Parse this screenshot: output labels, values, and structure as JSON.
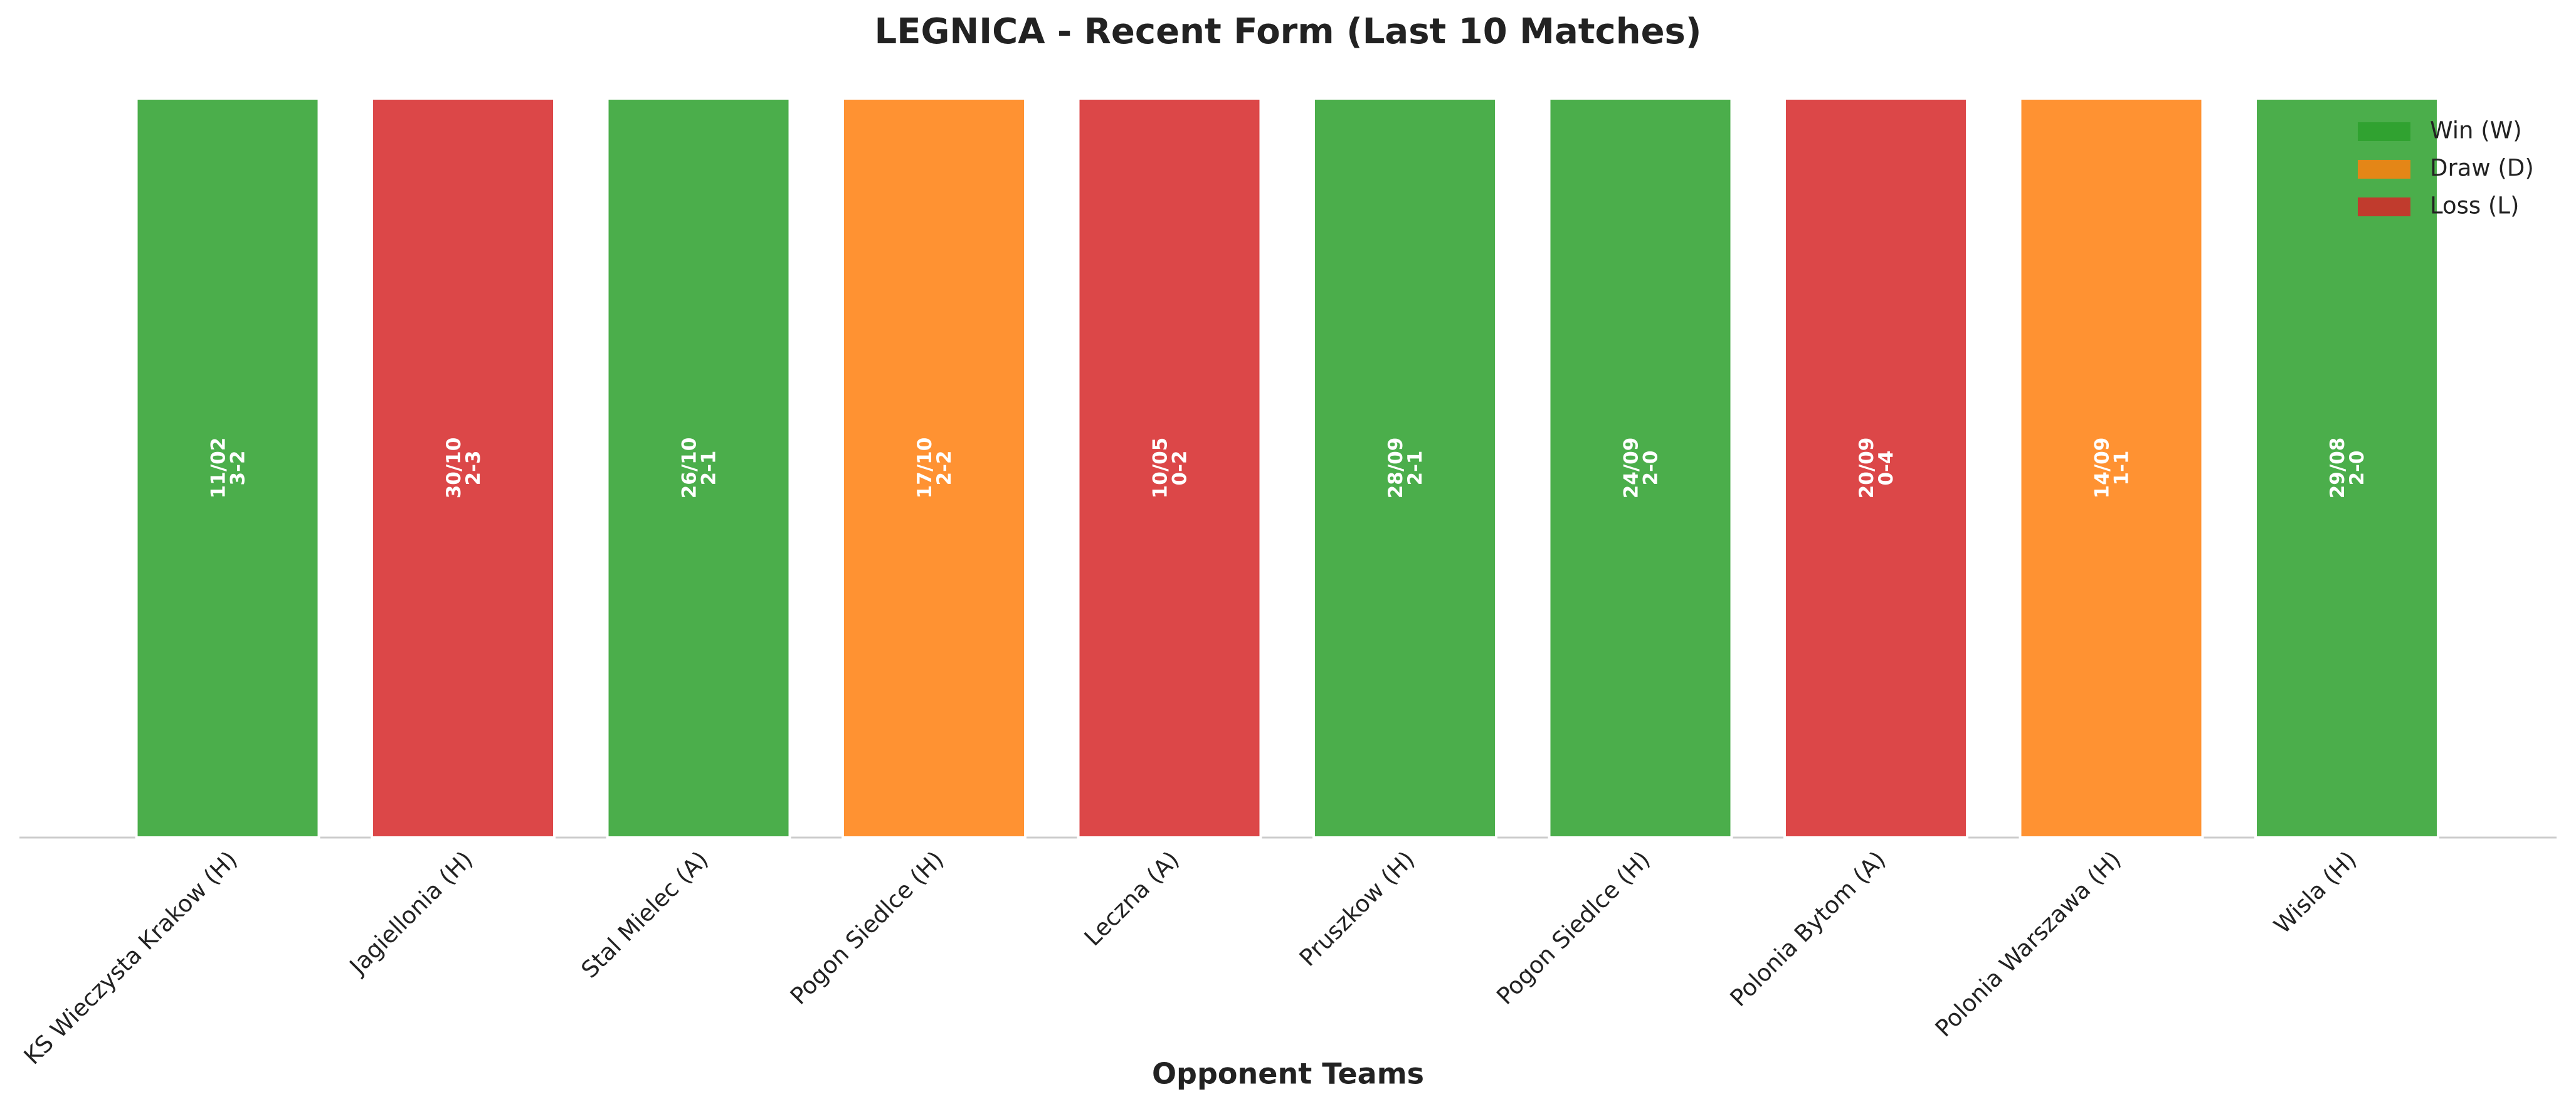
{
  "chart_data": {
    "type": "bar",
    "title": "LEGNICA - Recent Form (Last 10 Matches)",
    "x_label": "Opponent Teams",
    "categories": [
      "KS Wieczysta Krakow (H)",
      "Jagiellonia (H)",
      "Stal Mielec (A)",
      "Pogon Siedlce (H)",
      "Leczna (A)",
      "Pruszkow (H)",
      "Pogon Siedlce (H)",
      "Polonia Bytom (A)",
      "Polonia Warszawa (H)",
      "Wisla (H)"
    ],
    "values": [
      1,
      1,
      1,
      1,
      1,
      1,
      1,
      1,
      1,
      1
    ],
    "results": [
      "W",
      "L",
      "W",
      "D",
      "L",
      "W",
      "W",
      "L",
      "D",
      "W"
    ],
    "dates": [
      "11/02",
      "30/10",
      "26/10",
      "17/10",
      "10/05",
      "28/09",
      "24/09",
      "20/09",
      "14/09",
      "29/08"
    ],
    "scores": [
      "3-2",
      "2-3",
      "2-1",
      "2-2",
      "0-2",
      "2-1",
      "2-0",
      "0-4",
      "1-1",
      "2-0"
    ],
    "ylim": [
      0,
      1
    ],
    "legend": [
      {
        "name": "Win (W)",
        "code": "W",
        "color": "#2ca02c"
      },
      {
        "name": "Draw (D)",
        "code": "D",
        "color": "#ff7f0e"
      },
      {
        "name": "Loss (L)",
        "code": "L",
        "color": "#d62728"
      }
    ]
  }
}
